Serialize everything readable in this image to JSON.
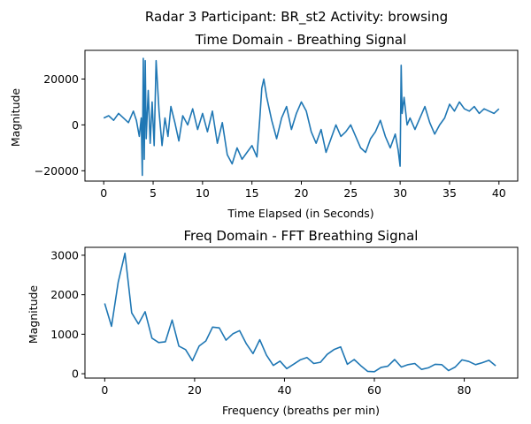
{
  "figure": {
    "suptitle": "Radar 3 Participant: BR_st2  Activity: browsing",
    "line_color": "#1f77b4"
  },
  "chart_data": [
    {
      "type": "line",
      "title": "Time Domain - Breathing Signal",
      "xlabel": "Time Elapsed (in Seconds)",
      "ylabel": "Magnitude",
      "xlim": [
        -1.9,
        41.9
      ],
      "ylim": [
        -24500,
        32500
      ],
      "xticks": [
        0,
        5,
        10,
        15,
        20,
        25,
        30,
        35,
        40
      ],
      "yticks": [
        -20000,
        0,
        20000
      ],
      "ytick_labels": [
        "−20000",
        "0",
        "20000"
      ],
      "grid": false,
      "series": [
        {
          "x": [
            0,
            0.5,
            1,
            1.5,
            2,
            2.5,
            3,
            3.3,
            3.6,
            3.8,
            3.9,
            4.0,
            4.1,
            4.2,
            4.3,
            4.5,
            4.7,
            4.9,
            5.1,
            5.3,
            5.6,
            5.9,
            6.2,
            6.5,
            6.8,
            7.2,
            7.6,
            8.0,
            8.5,
            9.0,
            9.5,
            10.0,
            10.5,
            11.0,
            11.5,
            12.0,
            12.5,
            13.0,
            13.5,
            14.0,
            14.5,
            15.0,
            15.5,
            15.8,
            16.0,
            16.2,
            16.5,
            17.0,
            17.5,
            18.0,
            18.5,
            19.0,
            19.5,
            20.0,
            20.5,
            21.0,
            21.5,
            22.0,
            22.5,
            23.0,
            23.5,
            24.0,
            24.5,
            25.0,
            25.5,
            26.0,
            26.5,
            27.0,
            27.5,
            28.0,
            28.5,
            29.0,
            29.5,
            29.8,
            30.0,
            30.1,
            30.2,
            30.4,
            30.7,
            31.0,
            31.5,
            32.0,
            32.5,
            33.0,
            33.5,
            34.0,
            34.5,
            35.0,
            35.5,
            36.0,
            36.5,
            37.0,
            37.5,
            38.0,
            38.5,
            39.0,
            39.5,
            40.0
          ],
          "y": [
            3000,
            4000,
            2000,
            5000,
            3000,
            1000,
            6000,
            2000,
            -5000,
            3000,
            -22000,
            29000,
            -15000,
            28000,
            -6000,
            15000,
            -8000,
            10000,
            -9000,
            28000,
            6000,
            -9000,
            3000,
            -5000,
            8000,
            1000,
            -7000,
            4000,
            0,
            7000,
            -2000,
            5000,
            -3000,
            6000,
            -8000,
            1000,
            -13000,
            -17000,
            -10000,
            -15000,
            -12000,
            -9000,
            -14000,
            3000,
            16000,
            20000,
            12000,
            2000,
            -6000,
            3000,
            8000,
            -2000,
            5000,
            10000,
            6000,
            -3000,
            -8000,
            -2000,
            -12000,
            -6000,
            0,
            -5000,
            -3000,
            0,
            -5000,
            -10000,
            -12000,
            -6000,
            -3000,
            2000,
            -5000,
            -10000,
            -4000,
            -11000,
            -18000,
            26000,
            5000,
            12000,
            0,
            3000,
            -2000,
            3000,
            8000,
            1000,
            -4000,
            0,
            3000,
            9000,
            6000,
            10000,
            7000,
            6000,
            8000,
            5000,
            7000,
            6000,
            5000,
            7000
          ]
        }
      ]
    },
    {
      "type": "line",
      "title": "Freq Domain - FFT Breathing Signal",
      "xlabel": "Frequency (breaths per min)",
      "ylabel": "Magnitude",
      "xlim": [
        -4.4,
        91.9
      ],
      "ylim": [
        -110,
        3200
      ],
      "xticks": [
        0,
        20,
        40,
        60,
        80
      ],
      "yticks": [
        0,
        1000,
        2000,
        3000
      ],
      "grid": false,
      "series": [
        {
          "x": [
            0,
            1.5,
            3,
            4.5,
            6,
            7.5,
            9,
            10.5,
            12,
            13.5,
            15,
            16.5,
            18,
            19.5,
            21,
            22.5,
            24,
            25.5,
            27,
            28.5,
            30,
            31.5,
            33,
            34.5,
            36,
            37.5,
            39,
            40.5,
            42,
            43.5,
            45,
            46.5,
            48,
            49.5,
            51,
            52.5,
            54,
            55.5,
            57,
            58.5,
            60,
            61.5,
            63,
            64.5,
            66,
            67.5,
            69,
            70.5,
            72,
            73.5,
            75,
            76.5,
            78,
            79.5,
            81,
            82.5,
            84,
            85.5,
            87
          ],
          "y": [
            1780,
            1200,
            2320,
            3050,
            1540,
            1260,
            1570,
            900,
            790,
            810,
            1360,
            700,
            610,
            330,
            700,
            830,
            1180,
            1160,
            850,
            1010,
            1090,
            760,
            510,
            860,
            470,
            210,
            320,
            130,
            240,
            350,
            410,
            260,
            290,
            490,
            610,
            680,
            240,
            360,
            200,
            60,
            50,
            160,
            190,
            360,
            170,
            230,
            260,
            110,
            150,
            240,
            230,
            80,
            170,
            350,
            310,
            230,
            280,
            340,
            200
          ]
        }
      ]
    }
  ]
}
